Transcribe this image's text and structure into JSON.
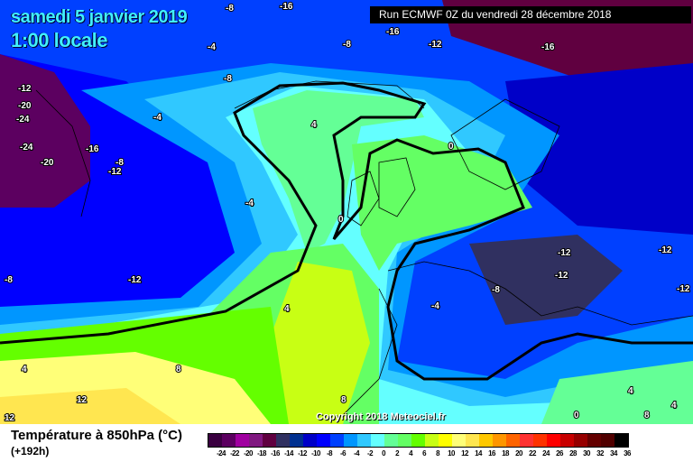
{
  "header": {
    "date": "samedi 5 janvier 2019",
    "time": "1:00 locale",
    "run": "Run ECMWF 0Z du vendredi 28 décembre 2018"
  },
  "copyright": "Copyright 2018 Meteociel.fr",
  "footer": {
    "title": "Température à 850hPa (°C)",
    "lead": "(+192h)"
  },
  "legend": {
    "labels": [
      "-24",
      "-22",
      "-20",
      "-18",
      "-16",
      "-14",
      "-12",
      "-10",
      "-8",
      "-6",
      "-4",
      "-2",
      "0",
      "2",
      "4",
      "6",
      "8",
      "10",
      "12",
      "14",
      "16",
      "18",
      "20",
      "22",
      "24",
      "26",
      "28",
      "30",
      "32",
      "34",
      "36"
    ],
    "colors": [
      "#3a0040",
      "#5c0060",
      "#a000a0",
      "#801880",
      "#600040",
      "#303060",
      "#003090",
      "#0000c8",
      "#0000ff",
      "#0040ff",
      "#0096ff",
      "#30c8ff",
      "#64ffff",
      "#64ff96",
      "#64ff64",
      "#64ff00",
      "#c8ff14",
      "#ffff00",
      "#ffff78",
      "#ffe650",
      "#ffc800",
      "#ff9600",
      "#ff6400",
      "#ff3232",
      "#ff3200",
      "#ff0000",
      "#c80000",
      "#960000",
      "#640000",
      "#500000",
      "#000000"
    ]
  },
  "contour_labels": [
    "-8",
    "-16",
    "-16",
    "-8",
    "-12",
    "-16",
    "-4",
    "-8",
    "-12",
    "-20",
    "-24",
    "-24",
    "-20",
    "-16",
    "-8",
    "-4",
    "-12",
    "4",
    "0",
    "-4",
    "0",
    "-8",
    "-12",
    "-12",
    "-8",
    "-12",
    "-12",
    "-4",
    "-12",
    "4",
    "8",
    "4",
    "12",
    "12",
    "8",
    "0",
    "4",
    "8",
    "4"
  ]
}
